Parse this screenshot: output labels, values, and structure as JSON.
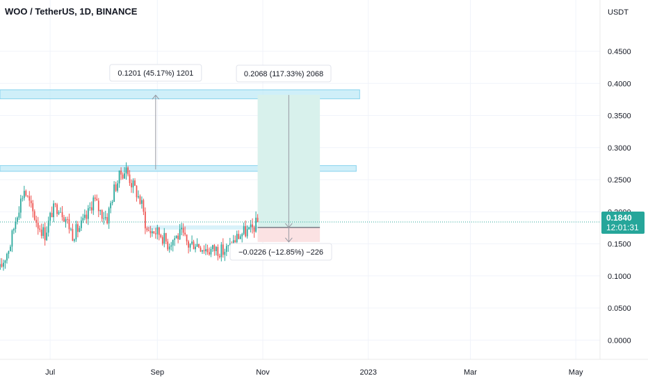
{
  "header": {
    "title": "WOO / TetherUS, 1D, BINANCE"
  },
  "colors": {
    "up": "#26a69a",
    "down": "#ef5350",
    "zone": "#bfe9f7",
    "zone_border": "#88d3ee",
    "profit": "#d8f1ec",
    "loss": "#fbe2e3",
    "price_tag": "#26a69a"
  },
  "price_tag": {
    "price": "0.1840",
    "countdown": "12:01:31"
  },
  "chart_data": {
    "type": "candlestick",
    "symbol": "WOO / TetherUS",
    "interval": "1D",
    "exchange": "BINANCE",
    "y_axis": {
      "unit": "USDT",
      "range": [
        -0.03,
        0.53
      ],
      "ticks": [
        "0.4500",
        "0.4000",
        "0.3500",
        "0.3000",
        "0.2500",
        "0.2000",
        "0.1500",
        "0.1000",
        "0.0500",
        "0.0000"
      ],
      "tick_values": [
        0.45,
        0.4,
        0.35,
        0.3,
        0.25,
        0.2,
        0.15,
        0.1,
        0.05,
        0.0
      ]
    },
    "x_axis": {
      "ticks": [
        "Jul",
        "Sep",
        "Nov",
        "2023",
        "Mar",
        "May"
      ],
      "tick_dates": [
        "2022-07-01",
        "2022-09-01",
        "2022-11-01",
        "2023-01-01",
        "2023-03-01",
        "2023-05-01"
      ],
      "range": [
        "2022-06-02",
        "2023-05-15"
      ]
    },
    "grid": true,
    "price_series": [
      [
        "2022-06-02",
        0.11
      ],
      [
        "2022-06-08",
        0.15
      ],
      [
        "2022-06-12",
        0.2
      ],
      [
        "2022-06-16",
        0.235
      ],
      [
        "2022-06-20",
        0.205
      ],
      [
        "2022-06-24",
        0.18
      ],
      [
        "2022-06-28",
        0.165
      ],
      [
        "2022-07-02",
        0.2
      ],
      [
        "2022-07-06",
        0.21
      ],
      [
        "2022-07-10",
        0.19
      ],
      [
        "2022-07-14",
        0.165
      ],
      [
        "2022-07-18",
        0.175
      ],
      [
        "2022-07-22",
        0.19
      ],
      [
        "2022-07-26",
        0.22
      ],
      [
        "2022-07-30",
        0.2
      ],
      [
        "2022-08-03",
        0.19
      ],
      [
        "2022-08-07",
        0.235
      ],
      [
        "2022-08-11",
        0.26
      ],
      [
        "2022-08-14",
        0.265
      ],
      [
        "2022-08-17",
        0.245
      ],
      [
        "2022-08-20",
        0.23
      ],
      [
        "2022-08-23",
        0.21
      ],
      [
        "2022-08-26",
        0.17
      ],
      [
        "2022-08-30",
        0.17
      ],
      [
        "2022-09-03",
        0.165
      ],
      [
        "2022-09-07",
        0.15
      ],
      [
        "2022-09-11",
        0.16
      ],
      [
        "2022-09-15",
        0.165
      ],
      [
        "2022-09-19",
        0.148
      ],
      [
        "2022-09-23",
        0.152
      ],
      [
        "2022-09-27",
        0.145
      ],
      [
        "2022-10-01",
        0.14
      ],
      [
        "2022-10-05",
        0.142
      ],
      [
        "2022-10-09",
        0.138
      ],
      [
        "2022-10-13",
        0.145
      ],
      [
        "2022-10-17",
        0.16
      ],
      [
        "2022-10-21",
        0.168
      ],
      [
        "2022-10-25",
        0.17
      ],
      [
        "2022-10-29",
        0.184
      ]
    ],
    "zones": [
      {
        "kind": "resistance",
        "price_low": 0.263,
        "price_high": 0.272,
        "x_start": "2022-06-02",
        "x_end": "2022-12-25"
      },
      {
        "kind": "target",
        "price_low": 0.376,
        "price_high": 0.39,
        "x_start": "2022-06-02",
        "x_end": "2022-12-27"
      }
    ],
    "current_price_line": 0.184,
    "long_position": {
      "entry": 0.1755,
      "target": 0.3823,
      "stop": 0.1529,
      "x_start": "2022-10-29",
      "x_end": "2022-12-04"
    },
    "annotations": [
      {
        "text": "0.1201 (45.17%) 1201",
        "date": "2022-08-31",
        "from_price": 0.266,
        "to_price": 0.386
      },
      {
        "text": "0.2068 (117.33%) 2068",
        "date": "2022-11-16",
        "from_price": 0.382,
        "to_price": 0.1755
      },
      {
        "text": "−0.0226 (−12.85%) −226",
        "date": "2022-11-16",
        "from_price": 0.1755,
        "to_price": 0.1529
      }
    ]
  }
}
